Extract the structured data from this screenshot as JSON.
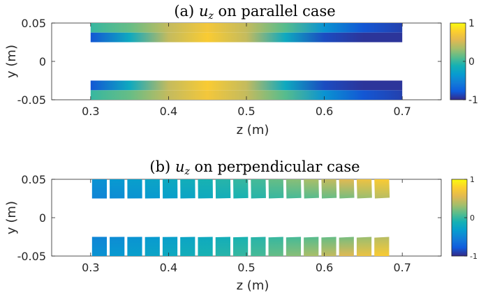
{
  "chart_data": [
    {
      "type": "heatmap",
      "title_prefix": "(a)",
      "title_var": "u",
      "title_sub": "z",
      "title_suffix": "on parallel case",
      "xlabel": "z (m)",
      "ylabel": "y (m)",
      "xlim": [
        0.25,
        0.75
      ],
      "ylim": [
        -0.05,
        0.05
      ],
      "xticks": [
        0.3,
        0.4,
        0.5,
        0.6,
        0.7
      ],
      "xtick_labels": [
        "0.3",
        "0.4",
        "0.5",
        "0.6",
        "0.7"
      ],
      "yticks": [
        0.05,
        0,
        -0.05
      ],
      "ytick_labels": [
        "0.05",
        "0",
        "-0.05"
      ],
      "colorbar": {
        "min": -1,
        "max": 1,
        "tick_labels": [
          "1",
          "0",
          "-1"
        ],
        "colormap": "parula"
      },
      "strips": [
        {
          "name": "upper",
          "z_range": [
            0.3,
            0.7
          ],
          "y_range": [
            0.025,
            0.05
          ]
        },
        {
          "name": "lower",
          "z_range": [
            0.3,
            0.7
          ],
          "y_range": [
            -0.05,
            -0.025
          ]
        }
      ],
      "profile_z": [
        0.3,
        0.35,
        0.4,
        0.45,
        0.5,
        0.55,
        0.6,
        0.65,
        0.7
      ],
      "profile_inner": [
        -0.8,
        -0.2,
        0.45,
        0.75,
        0.45,
        -0.2,
        -0.85,
        -0.95,
        -0.95
      ],
      "profile_outer": [
        0.0,
        0.15,
        0.45,
        0.7,
        0.45,
        0.1,
        -0.4,
        -0.8,
        -0.9
      ]
    },
    {
      "type": "heatmap",
      "title_prefix": "(b)",
      "title_var": "u",
      "title_sub": "z",
      "title_suffix": "on perpendicular case",
      "xlabel": "z (m)",
      "ylabel": "y (m)",
      "xlim": [
        0.25,
        0.75
      ],
      "ylim": [
        -0.05,
        0.05
      ],
      "xticks": [
        0.3,
        0.4,
        0.5,
        0.6,
        0.7
      ],
      "xtick_labels": [
        "0.3",
        "0.4",
        "0.5",
        "0.6",
        "0.7"
      ],
      "yticks": [
        0.05,
        0,
        -0.05
      ],
      "ytick_labels": [
        "0.05",
        "0",
        "-0.05"
      ],
      "colorbar": {
        "min": -1,
        "max": 1,
        "tick_labels": [
          "1",
          "0",
          "-1"
        ],
        "colormap": "parula"
      },
      "segments": 17,
      "segments_z_range": [
        0.3,
        0.685
      ],
      "strips": [
        {
          "name": "upper",
          "y_range": [
            0.025,
            0.05
          ]
        },
        {
          "name": "lower",
          "y_range": [
            -0.05,
            -0.025
          ]
        }
      ],
      "segment_values_inner": [
        -0.5,
        -0.45,
        -0.4,
        -0.35,
        -0.3,
        -0.25,
        -0.2,
        -0.15,
        -0.1,
        -0.05,
        0.0,
        0.05,
        0.1,
        0.15,
        0.2,
        0.3,
        0.4
      ],
      "segment_values_outer": [
        -0.4,
        -0.35,
        -0.3,
        -0.25,
        -0.2,
        -0.15,
        -0.1,
        -0.05,
        0.0,
        0.05,
        0.15,
        0.25,
        0.35,
        0.45,
        0.55,
        0.65,
        0.75
      ]
    }
  ]
}
